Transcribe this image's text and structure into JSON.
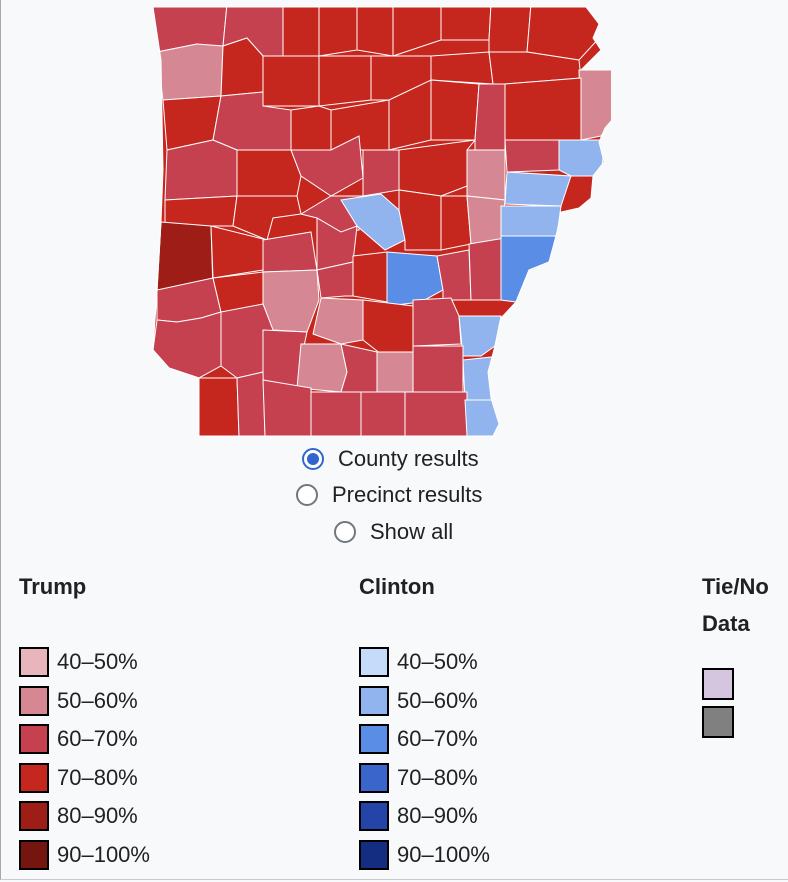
{
  "colors": {
    "trump_40_50": "#e8b5bd",
    "trump_50_60": "#d58893",
    "trump_60_70": "#c5414f",
    "trump_70_80": "#c5271f",
    "trump_80_90": "#9e1d17",
    "trump_90_100": "#741510",
    "clinton_40_50": "#c6dbfa",
    "clinton_50_60": "#91b4ee",
    "clinton_60_70": "#5a8de6",
    "clinton_70_80": "#3a66cc",
    "clinton_80_90": "#2445a8",
    "clinton_90_100": "#142d80",
    "tie": "#d3c6de",
    "no_data": "#808080",
    "county_border": "#ffffff"
  },
  "view_options": [
    {
      "label": "County results",
      "checked": true
    },
    {
      "label": "Precinct results",
      "checked": false
    },
    {
      "label": "Show all",
      "checked": false
    }
  ],
  "legend": {
    "trump": {
      "title": "Trump",
      "items": [
        {
          "label": "40–50%",
          "color": "#e8b5bd"
        },
        {
          "label": "50–60%",
          "color": "#d58893"
        },
        {
          "label": "60–70%",
          "color": "#c5414f"
        },
        {
          "label": "70–80%",
          "color": "#c5271f"
        },
        {
          "label": "80–90%",
          "color": "#9e1d17"
        },
        {
          "label": "90–100%",
          "color": "#741510"
        }
      ]
    },
    "clinton": {
      "title": "Clinton",
      "items": [
        {
          "label": "40–50%",
          "color": "#c6dbfa"
        },
        {
          "label": "50–60%",
          "color": "#91b4ee"
        },
        {
          "label": "60–70%",
          "color": "#5a8de6"
        },
        {
          "label": "70–80%",
          "color": "#3a66cc"
        },
        {
          "label": "80–90%",
          "color": "#2445a8"
        },
        {
          "label": "90–100%",
          "color": "#142d80"
        }
      ]
    },
    "tie_no_data": {
      "title_line1": "Tie/No",
      "title_line2": "Data",
      "items": [
        {
          "kind": "tie",
          "color": "#d3c6de"
        },
        {
          "kind": "no-data",
          "color": "#808080"
        }
      ]
    }
  }
}
